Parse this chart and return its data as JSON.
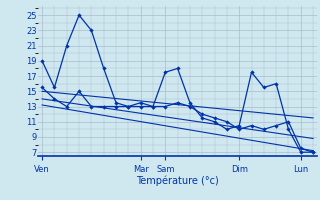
{
  "title": "",
  "xlabel": "Température (°c)",
  "ylabel": "",
  "background_color": "#cfe8f0",
  "grid_color": "#aabbcc",
  "line_color": "#0033aa",
  "yticks": [
    7,
    9,
    11,
    13,
    15,
    17,
    19,
    21,
    23,
    25
  ],
  "ylim": [
    6.5,
    26.2
  ],
  "xlim": [
    -0.3,
    22.3
  ],
  "day_labels": [
    "Ven",
    "Mar",
    "Sam",
    "Dim",
    "Lun"
  ],
  "day_positions": [
    0,
    8,
    10,
    16,
    21
  ],
  "line1_x": [
    0,
    1,
    2,
    3,
    4,
    5,
    6,
    7,
    8,
    9,
    10,
    11,
    12,
    13,
    14,
    15,
    16,
    17,
    18,
    19,
    20,
    21,
    22
  ],
  "line1_y": [
    19,
    15.5,
    21,
    25,
    23,
    18,
    13.5,
    13,
    13.5,
    13,
    17.5,
    18,
    13.5,
    11.5,
    11,
    10,
    10.5,
    17.5,
    15.5,
    16,
    10,
    7,
    7
  ],
  "line2_x": [
    0,
    1,
    2,
    3,
    4,
    5,
    6,
    7,
    8,
    9,
    10,
    11,
    12,
    13,
    14,
    15,
    16,
    17,
    18,
    19,
    20,
    21,
    22
  ],
  "line2_y": [
    15.5,
    14,
    13,
    15,
    13,
    13,
    13,
    13,
    13,
    13,
    13,
    13.5,
    13,
    12,
    11.5,
    11,
    10,
    10.5,
    10,
    10.5,
    11,
    7.5,
    7
  ],
  "trend1_x": [
    0,
    22
  ],
  "trend1_y": [
    15.0,
    11.5
  ],
  "trend2_x": [
    0,
    22
  ],
  "trend2_y": [
    14.0,
    8.8
  ],
  "trend3_x": [
    0,
    22
  ],
  "trend3_y": [
    13.2,
    7.2
  ]
}
